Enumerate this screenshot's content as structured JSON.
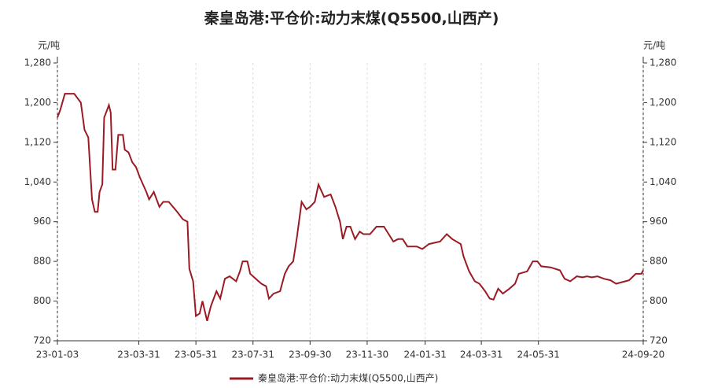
{
  "chart_data": {
    "type": "line",
    "title": "秦皇岛港:平仓价:动力末煤(Q5500,山西产)",
    "y_label": "元/吨",
    "y2_label": "元/吨",
    "x": [
      "23-01-03",
      "23-01-06",
      "23-01-11",
      "23-01-21",
      "23-01-28",
      "23-02-01",
      "23-02-05",
      "23-02-09",
      "23-02-12",
      "23-02-15",
      "23-02-17",
      "23-02-20",
      "23-02-22",
      "23-02-27",
      "23-03-01",
      "23-03-03",
      "23-03-06",
      "23-03-09",
      "23-03-14",
      "23-03-16",
      "23-03-20",
      "23-03-24",
      "23-03-28",
      "23-04-01",
      "23-04-08",
      "23-04-11",
      "23-04-16",
      "23-04-22",
      "23-04-26",
      "23-05-02",
      "23-05-11",
      "23-05-17",
      "23-05-22",
      "23-05-24",
      "23-05-28",
      "23-05-31",
      "23-06-04",
      "23-06-07",
      "23-06-12",
      "23-06-16",
      "23-06-22",
      "23-06-26",
      "23-07-01",
      "23-07-06",
      "23-07-13",
      "23-07-17",
      "23-07-20",
      "23-07-25",
      "23-07-28",
      "23-08-03",
      "23-08-09",
      "23-08-14",
      "23-08-17",
      "23-08-22",
      "23-08-29",
      "23-09-03",
      "23-09-07",
      "23-09-12",
      "23-09-16",
      "23-09-21",
      "23-09-26",
      "23-09-30",
      "23-10-05",
      "23-10-09",
      "23-10-15",
      "23-10-22",
      "23-10-27",
      "23-11-01",
      "23-11-04",
      "23-11-08",
      "23-11-12",
      "23-11-17",
      "23-11-22",
      "23-11-26",
      "23-12-03",
      "23-12-10",
      "23-12-18",
      "23-12-23",
      "23-12-28",
      "24-01-02",
      "24-01-07",
      "24-01-12",
      "24-01-22",
      "24-01-28",
      "24-02-04",
      "24-02-16",
      "24-02-23",
      "24-02-29",
      "24-03-09",
      "24-03-12",
      "24-03-18",
      "24-03-24",
      "24-03-29",
      "24-04-04",
      "24-04-09",
      "24-04-13",
      "24-04-18",
      "24-04-23",
      "24-04-30",
      "24-05-06",
      "24-05-10",
      "24-05-19",
      "24-05-25",
      "24-05-30",
      "24-06-03",
      "24-06-13",
      "24-06-23",
      "24-06-28",
      "24-07-04",
      "24-07-11",
      "24-07-17",
      "24-07-22",
      "24-07-27",
      "24-08-02",
      "24-08-09",
      "24-08-16",
      "24-08-22",
      "24-08-28",
      "24-09-05",
      "24-09-12",
      "24-09-18",
      "24-09-20"
    ],
    "series": [
      {
        "name": "秦皇岛港:平仓价:动力末煤(Q5500,山西产)",
        "color": "#9b1b24",
        "values": [
          1170,
          1185,
          1218,
          1218,
          1200,
          1145,
          1130,
          1005,
          980,
          980,
          1020,
          1035,
          1170,
          1195,
          1180,
          1065,
          1065,
          1135,
          1135,
          1105,
          1100,
          1080,
          1070,
          1050,
          1020,
          1005,
          1020,
          990,
          1000,
          1000,
          980,
          965,
          960,
          865,
          840,
          770,
          775,
          800,
          760,
          790,
          820,
          805,
          845,
          850,
          840,
          860,
          880,
          880,
          855,
          845,
          835,
          830,
          805,
          815,
          820,
          855,
          870,
          880,
          930,
          1000,
          985,
          990,
          1000,
          1035,
          1010,
          1015,
          990,
          960,
          925,
          950,
          950,
          925,
          940,
          935,
          935,
          950,
          950,
          935,
          920,
          925,
          925,
          910,
          910,
          905,
          915,
          920,
          935,
          925,
          915,
          890,
          860,
          840,
          835,
          820,
          805,
          803,
          825,
          815,
          825,
          835,
          855,
          860,
          880,
          880,
          870,
          868,
          862,
          845,
          840,
          850,
          848,
          850,
          848,
          850,
          845,
          842,
          835,
          838,
          842,
          855,
          855,
          862
        ]
      }
    ],
    "xticks": [
      "23-01-03",
      "23-03-31",
      "23-05-31",
      "23-07-31",
      "23-09-30",
      "23-11-30",
      "24-01-31",
      "24-03-31",
      "24-05-31",
      "24-09-20"
    ],
    "ylim": [
      720,
      1280
    ],
    "yticks": [
      720,
      800,
      880,
      960,
      {
        "value": 1040,
        "label": "1,040"
      },
      {
        "value": 1120,
        "label": "1,120"
      },
      {
        "value": 1200,
        "label": "1,200"
      },
      {
        "value": 1280,
        "label": "1,280"
      }
    ],
    "y2lim": [
      720,
      1280
    ],
    "y2ticks": [
      720,
      800,
      880,
      960,
      {
        "value": 1040,
        "label": "1,040"
      },
      {
        "value": 1120,
        "label": "1,120"
      },
      {
        "value": 1200,
        "label": "1,200"
      },
      {
        "value": 1280,
        "label": "1,280"
      }
    ],
    "xgrid": true,
    "legend": "bottom"
  }
}
